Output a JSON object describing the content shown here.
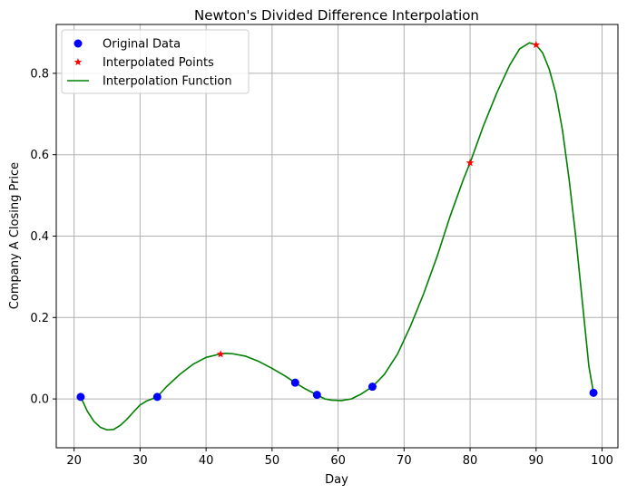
{
  "chart_data": {
    "type": "line",
    "title": "Newton's Divided Difference Interpolation",
    "xlabel": "Day",
    "ylabel": "Company A Closing Price",
    "xlim": [
      17.3,
      102.4
    ],
    "ylim": [
      -0.12,
      0.92
    ],
    "xticks": [
      20,
      30,
      40,
      50,
      60,
      70,
      80,
      90,
      100
    ],
    "yticks": [
      0.0,
      0.2,
      0.4,
      0.6,
      0.8
    ],
    "grid": true,
    "legend_position": "top-left",
    "series": [
      {
        "name": "Original Data",
        "kind": "scatter",
        "marker": "circle",
        "color": "#0000ff",
        "points": [
          [
            21,
            0.005
          ],
          [
            32.6,
            0.005
          ],
          [
            53.5,
            0.04
          ],
          [
            56.8,
            0.01
          ],
          [
            65.2,
            0.03
          ],
          [
            98.7,
            0.015
          ]
        ]
      },
      {
        "name": "Interpolated Points",
        "kind": "scatter",
        "marker": "star",
        "color": "#ff0000",
        "points": [
          [
            42.2,
            0.11
          ],
          [
            80,
            0.58
          ],
          [
            90,
            0.87
          ]
        ]
      },
      {
        "name": "Interpolation Function",
        "kind": "line",
        "color": "#008000",
        "points": [
          [
            21,
            0.005
          ],
          [
            22,
            -0.03
          ],
          [
            23,
            -0.055
          ],
          [
            24,
            -0.07
          ],
          [
            25,
            -0.076
          ],
          [
            26,
            -0.075
          ],
          [
            27,
            -0.065
          ],
          [
            28,
            -0.05
          ],
          [
            29,
            -0.032
          ],
          [
            30,
            -0.015
          ],
          [
            31,
            -0.005
          ],
          [
            32.6,
            0.005
          ],
          [
            34,
            0.03
          ],
          [
            36,
            0.06
          ],
          [
            38,
            0.085
          ],
          [
            40,
            0.102
          ],
          [
            42,
            0.11
          ],
          [
            43,
            0.112
          ],
          [
            44,
            0.111
          ],
          [
            46,
            0.105
          ],
          [
            48,
            0.092
          ],
          [
            50,
            0.075
          ],
          [
            52,
            0.056
          ],
          [
            53.5,
            0.04
          ],
          [
            55,
            0.025
          ],
          [
            56.8,
            0.01
          ],
          [
            58,
            0.0
          ],
          [
            59,
            -0.003
          ],
          [
            60.5,
            -0.004
          ],
          [
            62,
            0.0
          ],
          [
            63.5,
            0.012
          ],
          [
            65.2,
            0.03
          ],
          [
            67,
            0.06
          ],
          [
            69,
            0.11
          ],
          [
            71,
            0.18
          ],
          [
            73,
            0.26
          ],
          [
            75,
            0.35
          ],
          [
            77,
            0.45
          ],
          [
            79,
            0.54
          ],
          [
            80,
            0.58
          ],
          [
            82,
            0.67
          ],
          [
            84,
            0.75
          ],
          [
            86,
            0.82
          ],
          [
            87.5,
            0.86
          ],
          [
            89,
            0.875
          ],
          [
            90,
            0.87
          ],
          [
            91,
            0.85
          ],
          [
            92,
            0.81
          ],
          [
            93,
            0.75
          ],
          [
            94,
            0.66
          ],
          [
            95,
            0.54
          ],
          [
            96,
            0.4
          ],
          [
            97,
            0.24
          ],
          [
            98,
            0.08
          ],
          [
            98.7,
            0.015
          ]
        ]
      }
    ]
  }
}
